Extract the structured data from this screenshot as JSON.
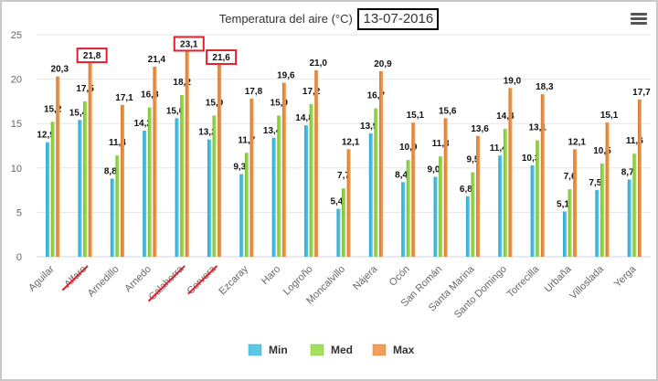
{
  "title_prefix": "Temperatura del aire (°C)",
  "title_date": "13-07-2016",
  "menu_icon": "hamburger-menu-icon",
  "colors": {
    "min": "#5bc8e8",
    "med": "#a4e05a",
    "max": "#f0a05a",
    "highlight": "#e0202a",
    "grid": "#e6e6e6",
    "axis": "#ccd6eb"
  },
  "legend": [
    "Min",
    "Med",
    "Max"
  ],
  "chart_data": {
    "type": "bar",
    "title": "Temperatura del aire (°C) 13-07-2016",
    "xlabel": "",
    "ylabel": "",
    "ylim": [
      0,
      25
    ],
    "yticks": [
      0,
      5,
      10,
      15,
      20,
      25
    ],
    "grid": true,
    "legend_position": "bottom-center",
    "categories": [
      "Aguilar",
      "Alfaro",
      "Arnedillo",
      "Arnedo",
      "Calahorra",
      "Cervera",
      "Ezcaray",
      "Haro",
      "Logroño",
      "Moncalvillo",
      "Nájera",
      "Ocón",
      "San Román",
      "Santa Marina",
      "Santo Domingo",
      "Torrecilla",
      "Urbaña",
      "Villoslada",
      "Yerga"
    ],
    "series": [
      {
        "name": "Min",
        "values": [
          12.9,
          15.4,
          8.8,
          14.2,
          15.6,
          13.2,
          9.3,
          13.4,
          14.8,
          5.4,
          13.9,
          8.4,
          9.0,
          6.8,
          11.4,
          10.3,
          5.1,
          7.5,
          8.7
        ]
      },
      {
        "name": "Med",
        "values": [
          15.2,
          17.5,
          11.4,
          16.8,
          18.2,
          15.9,
          11.7,
          15.9,
          17.2,
          7.7,
          16.7,
          10.9,
          11.3,
          9.5,
          14.4,
          13.1,
          7.6,
          10.5,
          11.6
        ]
      },
      {
        "name": "Max",
        "values": [
          20.3,
          21.8,
          17.1,
          21.4,
          23.1,
          21.6,
          17.8,
          19.6,
          21.0,
          12.1,
          20.9,
          15.1,
          15.6,
          13.6,
          19.0,
          18.3,
          12.1,
          15.1,
          17.7
        ]
      }
    ],
    "annotations": {
      "boxed_max_labels": [
        "Alfaro",
        "Calahorra",
        "Cervera"
      ],
      "struck_categories": [
        "Alfaro",
        "Calahorra",
        "Cervera"
      ]
    }
  }
}
